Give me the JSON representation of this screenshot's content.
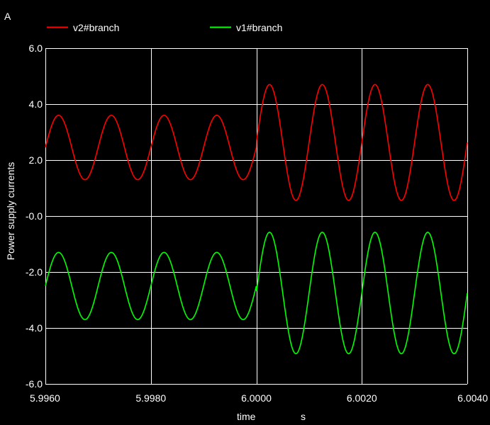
{
  "chart_data": {
    "type": "line",
    "corner_label": "A",
    "xlabel": "time",
    "xunit": "s",
    "ylabel": "Power supply currents",
    "xlim": [
      5.996,
      6.004
    ],
    "ylim": [
      -6.0,
      6.0
    ],
    "xticks": [
      5.996,
      5.998,
      6.0,
      6.002,
      6.004
    ],
    "xtick_labels": [
      "5.9960",
      "5.9980",
      "6.0000",
      "6.0020",
      "6.0040"
    ],
    "yticks": [
      6.0,
      4.0,
      2.0,
      0.0,
      -2.0,
      -4.0,
      -6.0
    ],
    "ytick_labels": [
      "6.0",
      "4.0",
      "2.0",
      "-0.0",
      "-2.0",
      "-4.0",
      "-6.0"
    ],
    "grid": true,
    "legend_position": "top",
    "background": "#000000",
    "grid_color": "#ffffff",
    "frequency_hz": 1000,
    "series": [
      {
        "name": "v2#branch",
        "color": "#ff0000",
        "segments": [
          {
            "t_start": 5.996,
            "t_end": 6.0,
            "offset": 2.45,
            "amplitude": 1.15
          },
          {
            "t_start": 6.0,
            "t_end": 6.004,
            "offset": 2.63,
            "amplitude": 2.07
          }
        ]
      },
      {
        "name": "v1#branch",
        "color": "#00ff00",
        "segments": [
          {
            "t_start": 5.996,
            "t_end": 6.0,
            "offset": -2.5,
            "amplitude": 1.2
          },
          {
            "t_start": 6.0,
            "t_end": 6.004,
            "offset": -2.75,
            "amplitude": 2.17
          }
        ]
      }
    ]
  }
}
